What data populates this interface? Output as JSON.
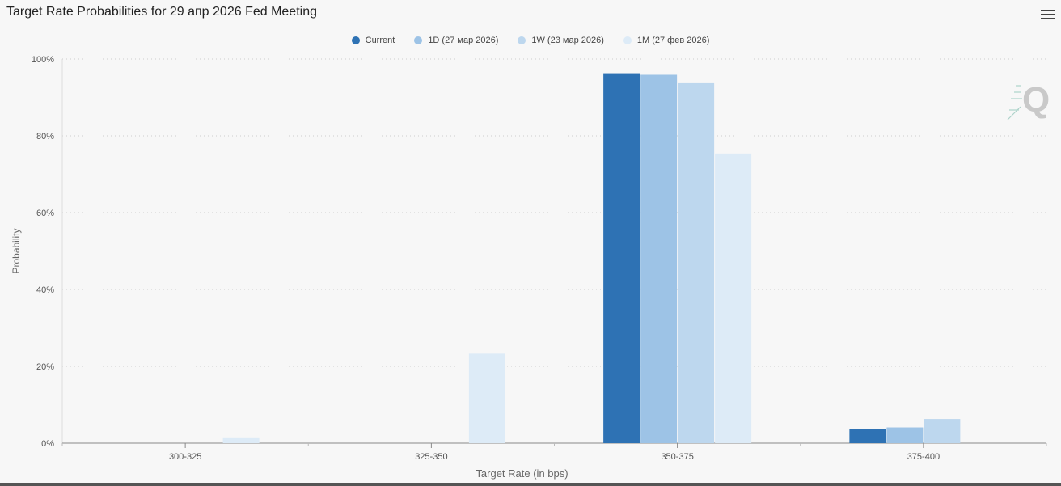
{
  "header": {
    "title": "Target Rate Probabilities for 29 апр 2026 Fed Meeting",
    "menu_icon": "hamburger-menu-icon"
  },
  "watermark_icon": "quikstrike-q-logo-icon",
  "colors": {
    "background": "#f7f7f7",
    "grid": "#cccccc",
    "axis": "#888888"
  },
  "chart_data": {
    "type": "bar",
    "title": "Target Rate Probabilities for 29 апр 2026 Fed Meeting",
    "xlabel": "Target Rate (in bps)",
    "ylabel": "Probability",
    "categories": [
      "300-325",
      "325-350",
      "350-375",
      "375-400"
    ],
    "ylim": [
      0,
      100
    ],
    "yticks": [
      "0%",
      "20%",
      "40%",
      "60%",
      "80%",
      "100%"
    ],
    "ytick_values": [
      0,
      20,
      40,
      60,
      80,
      100
    ],
    "grid": true,
    "legend_position": "top-center",
    "series": [
      {
        "name": "Current",
        "color": "#2e72b4",
        "values": [
          0,
          0,
          96.3,
          3.7
        ]
      },
      {
        "name": "1D (27 мар 2026)",
        "color": "#9dc3e6",
        "values": [
          0,
          0,
          95.9,
          4.1
        ]
      },
      {
        "name": "1W (23 мар 2026)",
        "color": "#bdd7ee",
        "values": [
          0,
          0,
          93.7,
          6.3
        ]
      },
      {
        "name": "1M (27 фев 2026)",
        "color": "#ddebf7",
        "values": [
          1.3,
          23.3,
          75.4,
          0
        ]
      }
    ]
  }
}
